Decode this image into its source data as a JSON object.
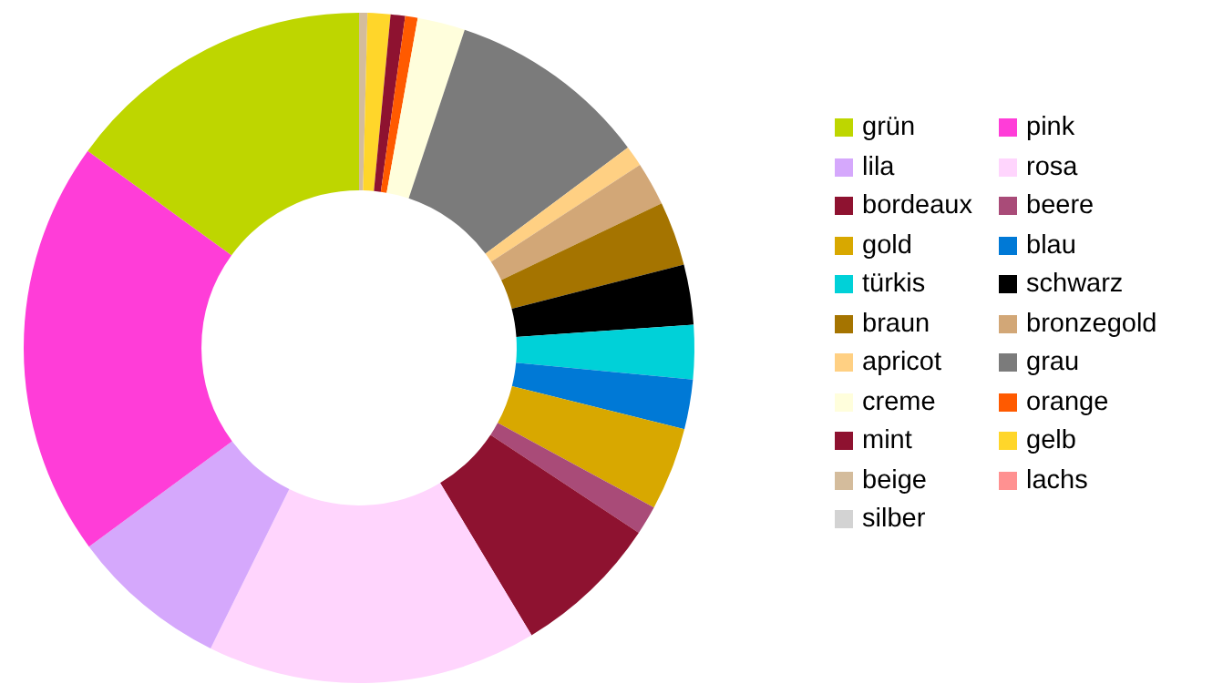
{
  "chart_data": {
    "type": "donut",
    "categories": [
      "grün",
      "pink",
      "lila",
      "rosa",
      "bordeaux",
      "beere",
      "gold",
      "blau",
      "türkis",
      "schwarz",
      "braun",
      "bronzegold",
      "apricot",
      "grau",
      "creme",
      "orange",
      "mint",
      "gelb",
      "beige",
      "lachs",
      "silber"
    ],
    "values": [
      15,
      20.1,
      7.6,
      15.9,
      7.1,
      1.4,
      4,
      2.4,
      2.6,
      2.9,
      3.1,
      2.1,
      1,
      9.7,
      2.3,
      0.6,
      0.7,
      1.1,
      0.4,
      0,
      0
    ],
    "colors": [
      "#bed600",
      "#ff3dd8",
      "#d5a8fc",
      "#ffd5fd",
      "#8e1230",
      "#a94b78",
      "#d8a800",
      "#0079d6",
      "#00d1d8",
      "#000000",
      "#a57400",
      "#d2a777",
      "#ffd083",
      "#7b7b7b",
      "#fffedc",
      "#ff5a00",
      "#8e1230",
      "#ffd62a",
      "#d4bc9c",
      "#ff9191",
      "#d3d3d3"
    ],
    "legend": "right"
  }
}
